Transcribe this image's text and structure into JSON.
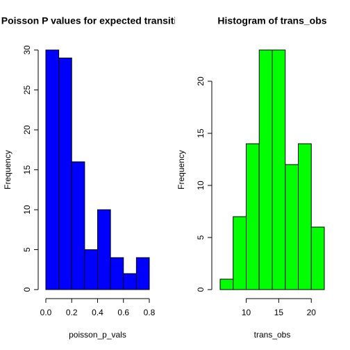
{
  "chart_data": [
    {
      "type": "histogram",
      "title": "Poisson P values for expected transitions",
      "xlabel": "poisson_p_vals",
      "ylabel": "Frequency",
      "bins": [
        0,
        0.1,
        0.2,
        0.3,
        0.4,
        0.5,
        0.6,
        0.7,
        0.8
      ],
      "counts": [
        30,
        29,
        16,
        5,
        10,
        4,
        2,
        4
      ],
      "color": "#0000ff",
      "xlim": [
        0,
        0.8
      ],
      "ylim": [
        0,
        30
      ],
      "xticks": [
        {
          "value": 0,
          "label": "0.0"
        },
        0.2,
        0.4,
        0.6,
        0.8
      ],
      "yticks": [
        0,
        5,
        10,
        15,
        20,
        25,
        30
      ]
    },
    {
      "type": "histogram",
      "title": "Histogram of trans_obs",
      "xlabel": "trans_obs",
      "ylabel": "Frequency",
      "bins": [
        6,
        8,
        10,
        12,
        14,
        16,
        18,
        20,
        22
      ],
      "counts": [
        1,
        7,
        14,
        23,
        23,
        12,
        14,
        6
      ],
      "color": "#00ff00",
      "xlim": [
        6,
        22
      ],
      "ylim": [
        0,
        23
      ],
      "xticks": [
        10,
        15,
        20
      ],
      "yticks": [
        0,
        5,
        10,
        15,
        20
      ]
    }
  ]
}
